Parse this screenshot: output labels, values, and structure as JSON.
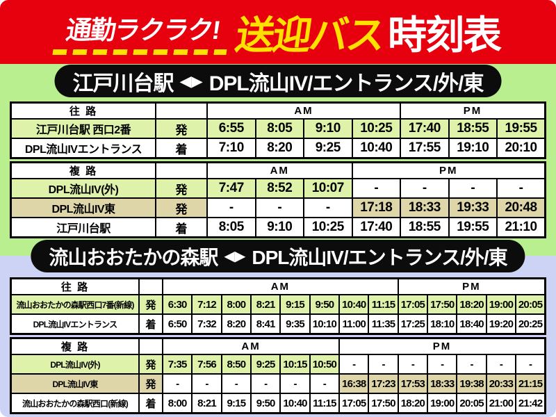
{
  "header": {
    "title_left": "通勤ラクラク!",
    "title_mid": "送迎バス",
    "title_right": "時刻表"
  },
  "colors": {
    "header_red": "#e7000e",
    "accent_yellow": "#ffe100",
    "zone1_green": "#b9ef8e",
    "zone2_lavender": "#cdd3f4",
    "cell_green": "#def2a9",
    "cell_tan": "#ded6a9",
    "banner_black": "#0c0c0c"
  },
  "sections": [
    {
      "banner": {
        "from": "江戸川台駅",
        "arrows": "◀▶",
        "to": "DPL流山IV/エントランス/外/東"
      },
      "tables": [
        {
          "route_label": "往 路",
          "am_label": "AM",
          "pm_label": "PM",
          "am_cols": 4,
          "pm_cols": 3,
          "rows": [
            {
              "station": "江戸川台駅 西口2番",
              "mark": "発",
              "highlight": "green",
              "cells": [
                "6:55",
                "8:05",
                "9:10",
                "10:25",
                "17:40",
                "18:55",
                "19:55"
              ]
            },
            {
              "station": "DPL流山IVエントランス",
              "mark": "着",
              "highlight": "white",
              "cells": [
                "7:10",
                "8:20",
                "9:25",
                "10:40",
                "17:55",
                "19:10",
                "20:10"
              ]
            }
          ]
        },
        {
          "route_label": "複 路",
          "am_label": "AM",
          "pm_label": "PM",
          "am_cols": 3,
          "pm_cols": 4,
          "rows": [
            {
              "station": "DPL流山IV(外)",
              "mark": "発",
              "highlight": "green",
              "cells": [
                "7:47",
                "8:52",
                "10:07",
                "-",
                "-",
                "-",
                "-"
              ]
            },
            {
              "station": "DPL流山IV東",
              "mark": "発",
              "highlight": "tan",
              "cells": [
                "-",
                "-",
                "-",
                "17:18",
                "18:33",
                "19:33",
                "20:48"
              ]
            },
            {
              "station": "江戸川台駅",
              "mark": "着",
              "highlight": "white",
              "cells": [
                "8:05",
                "9:10",
                "10:25",
                "17:40",
                "18:55",
                "19:55",
                "21:10"
              ]
            }
          ]
        }
      ]
    },
    {
      "banner": {
        "from": "流山おおたかの森駅",
        "arrows": "◀▶",
        "to": "DPL流山IV/エントランス/外/東"
      },
      "tables": [
        {
          "route_label": "往 路",
          "am_label": "AM",
          "pm_label": "PM",
          "am_cols": 8,
          "pm_cols": 5,
          "rows": [
            {
              "station": "流山おおたかの森駅西口7番(新線)",
              "mark": "発",
              "highlight": "green",
              "cells": [
                "6:30",
                "7:12",
                "8:00",
                "8:21",
                "9:15",
                "9:50",
                "10:40",
                "11:15",
                "17:05",
                "17:50",
                "18:20",
                "19:00",
                "20:05"
              ]
            },
            {
              "station": "DPL流山IVエントランス",
              "mark": "着",
              "highlight": "white",
              "cells": [
                "6:50",
                "7:32",
                "8:20",
                "8:41",
                "9:35",
                "10:10",
                "11:00",
                "11:35",
                "17:25",
                "18:10",
                "18:40",
                "19:20",
                "20:25"
              ]
            }
          ]
        },
        {
          "route_label": "複 路",
          "am_label": "AM",
          "pm_label": "PM",
          "am_cols": 6,
          "pm_cols": 7,
          "rows": [
            {
              "station": "DPL流山IV(外)",
              "mark": "発",
              "highlight": "green",
              "cells": [
                "7:35",
                "7:56",
                "8:50",
                "9:25",
                "10:15",
                "10:50",
                "-",
                "-",
                "-",
                "-",
                "-",
                "-",
                "-"
              ]
            },
            {
              "station": "DPL流山IV東",
              "mark": "発",
              "highlight": "tan",
              "cells": [
                "-",
                "-",
                "-",
                "-",
                "-",
                "-",
                "16:38",
                "17:23",
                "17:53",
                "18:33",
                "19:38",
                "20:33",
                "21:15"
              ]
            },
            {
              "station": "流山おおたかの森駅西口(新線)",
              "mark": "着",
              "highlight": "white",
              "cells": [
                "8:00",
                "8:21",
                "9:15",
                "9:50",
                "10:40",
                "11:15",
                "17:05",
                "17:50",
                "18:20",
                "19:00",
                "20:05",
                "21:00",
                "21:42"
              ]
            }
          ]
        }
      ]
    }
  ]
}
